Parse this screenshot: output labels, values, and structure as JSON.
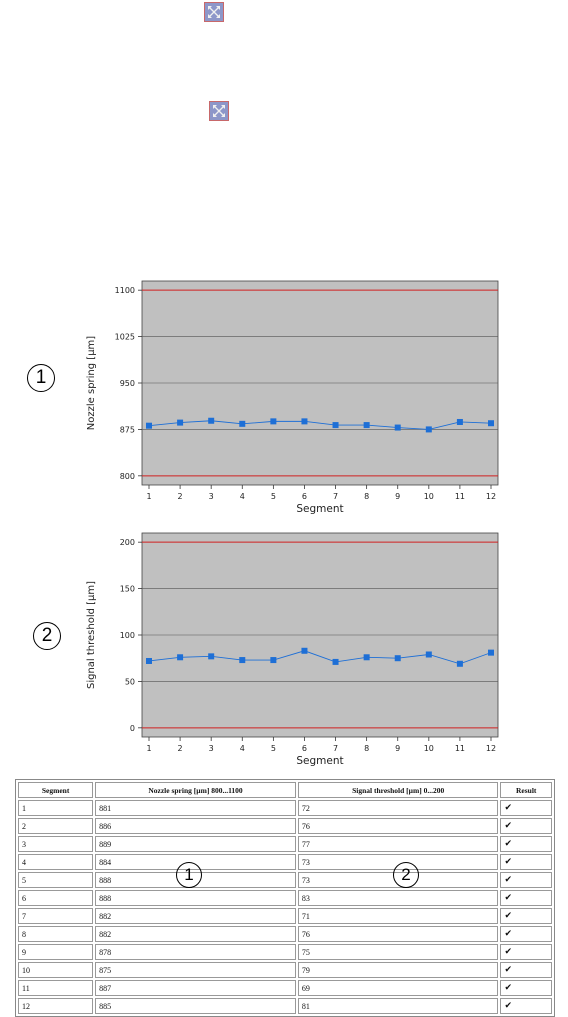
{
  "icons": {
    "expand_top": "expand-arrows-icon",
    "expand_bottom": "expand-arrows-icon",
    "check": "checkmark-icon"
  },
  "markers": {
    "m1": "1",
    "m2": "2",
    "t1": "1",
    "t2": "2"
  },
  "colors": {
    "plot_bg": "#c0c0c0",
    "series": "#1e6fd6",
    "limit_line": "#d02020",
    "check": "#5cb82e"
  },
  "chart_data": [
    {
      "type": "line",
      "xlabel": "Segment",
      "ylabel": "Nozzle spring [µm]",
      "x": [
        1,
        2,
        3,
        4,
        5,
        6,
        7,
        8,
        9,
        10,
        11,
        12
      ],
      "values": [
        881,
        886,
        889,
        884,
        888,
        888,
        882,
        882,
        878,
        875,
        887,
        885
      ],
      "yticks": [
        800,
        875,
        950,
        1025,
        1100
      ],
      "ylim": [
        800,
        1100
      ],
      "limits": [
        800,
        1100
      ],
      "grid": true
    },
    {
      "type": "line",
      "xlabel": "Segment",
      "ylabel": "Signal threshold [µm]",
      "x": [
        1,
        2,
        3,
        4,
        5,
        6,
        7,
        8,
        9,
        10,
        11,
        12
      ],
      "values": [
        72,
        76,
        77,
        73,
        73,
        83,
        71,
        76,
        75,
        79,
        69,
        81
      ],
      "yticks": [
        0,
        50,
        100,
        150,
        200
      ],
      "ylim": [
        0,
        200
      ],
      "limits": [
        0,
        200
      ],
      "grid": true
    }
  ],
  "table": {
    "headers": [
      "Segment",
      "Nozzle spring [µm] 800...1100",
      "Signal threshold [µm] 0...200",
      "Result"
    ],
    "rows": [
      [
        "1",
        "881",
        "72",
        "✔"
      ],
      [
        "2",
        "886",
        "76",
        "✔"
      ],
      [
        "3",
        "889",
        "77",
        "✔"
      ],
      [
        "4",
        "884",
        "73",
        "✔"
      ],
      [
        "5",
        "888",
        "73",
        "✔"
      ],
      [
        "6",
        "888",
        "83",
        "✔"
      ],
      [
        "7",
        "882",
        "71",
        "✔"
      ],
      [
        "8",
        "882",
        "76",
        "✔"
      ],
      [
        "9",
        "878",
        "75",
        "✔"
      ],
      [
        "10",
        "875",
        "79",
        "✔"
      ],
      [
        "11",
        "887",
        "69",
        "✔"
      ],
      [
        "12",
        "885",
        "81",
        "✔"
      ]
    ]
  }
}
